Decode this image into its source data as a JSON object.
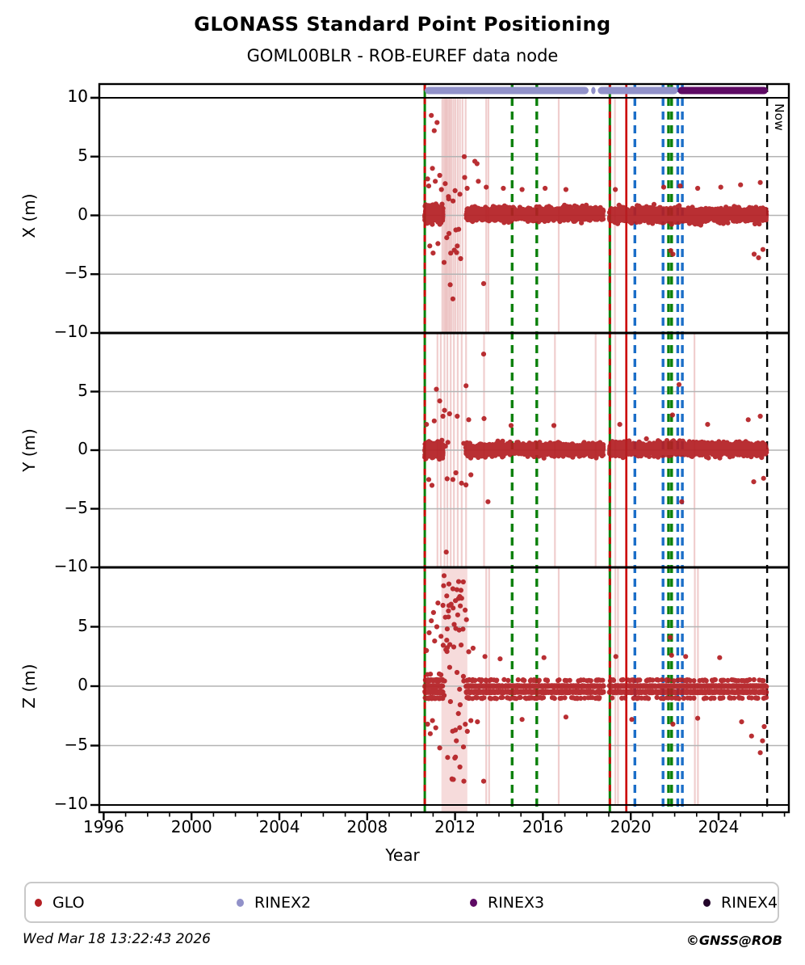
{
  "header": {
    "title": "GLONASS Standard Point Positioning",
    "subtitle": "GOML00BLR - ROB-EUREF data node"
  },
  "chart_data": {
    "type": "scatter",
    "xlabel": "Year",
    "x_range": [
      1995.8,
      2027.2
    ],
    "x_major_ticks": [
      1996,
      2000,
      2004,
      2008,
      2012,
      2016,
      2020,
      2024
    ],
    "x_minor_step": 1,
    "y_range_per_panel": [
      -10,
      10
    ],
    "gridline_values": [
      5,
      0,
      -5
    ],
    "now": {
      "year": 2026.21,
      "label": "Now"
    },
    "colors": {
      "glo": "#b41f24",
      "red": "#cc0000",
      "green": "#0a800a",
      "blue": "#1b6ec8",
      "black": "#000000",
      "grid": "#b3b3b3",
      "pale": "rgba(205,92,92,0.30)",
      "shade": "rgba(226,142,142,0.32)"
    },
    "bands": [
      {
        "name": "RINEX2",
        "color": "#9191c9",
        "segments": [
          [
            2010.62,
            2018.08
          ],
          [
            2018.2,
            2018.4
          ],
          [
            2018.5,
            2022.14
          ]
        ]
      },
      {
        "name": "RINEX3",
        "color": "#5e0a64",
        "segments": [
          [
            2022.14,
            2026.24
          ]
        ]
      }
    ],
    "events": [
      {
        "year": 2010.62,
        "color": "green",
        "style": "solid",
        "overlay_red_dashed": true
      },
      {
        "year": 2014.6,
        "color": "green",
        "style": "dashed"
      },
      {
        "year": 2015.72,
        "color": "green",
        "style": "dashed"
      },
      {
        "year": 2019.05,
        "color": "green",
        "style": "solid",
        "overlay_red_dashed": true
      },
      {
        "year": 2019.8,
        "color": "red",
        "style": "solid"
      },
      {
        "year": 2020.19,
        "color": "blue",
        "style": "dashed"
      },
      {
        "year": 2021.47,
        "color": "blue",
        "style": "dashed"
      },
      {
        "year": 2021.72,
        "color": "green",
        "style": "dashed"
      },
      {
        "year": 2021.86,
        "color": "green",
        "style": "dashed"
      },
      {
        "year": 2022.14,
        "color": "blue",
        "style": "dashed"
      },
      {
        "year": 2022.35,
        "color": "blue",
        "style": "dashed"
      }
    ],
    "panels": [
      {
        "name": "X",
        "ylabel": "X (m)",
        "tick_values": [
          10,
          5,
          0,
          -5,
          -10
        ],
        "clusters": [
          {
            "x0": 2010.62,
            "x1": 2011.45,
            "n": 420,
            "spread": 1.15,
            "center": 0.1
          },
          {
            "x0": 2012.5,
            "x1": 2018.76,
            "n": 1250,
            "spread": 0.95,
            "center": 0.12
          },
          {
            "x0": 2019.03,
            "x1": 2026.18,
            "n": 1500,
            "spread": 1.0,
            "center": 0.05
          }
        ],
        "sparse": {
          "x0": 2011.45,
          "x1": 2012.5,
          "n": 10,
          "ymin": -4.5,
          "ymax": 4.8
        },
        "outliers": [
          [
            2010.75,
            3.1
          ],
          [
            2010.8,
            2.5
          ],
          [
            2010.85,
            -2.6
          ],
          [
            2010.92,
            8.5
          ],
          [
            2010.97,
            4.0
          ],
          [
            2011.0,
            -3.2
          ],
          [
            2011.05,
            7.2
          ],
          [
            2011.1,
            2.9
          ],
          [
            2011.18,
            7.9
          ],
          [
            2011.22,
            -2.4
          ],
          [
            2011.3,
            3.4
          ],
          [
            2011.38,
            2.2
          ],
          [
            2011.5,
            -4.0
          ],
          [
            2011.55,
            2.7
          ],
          [
            2011.62,
            -1.9
          ],
          [
            2011.7,
            1.6
          ],
          [
            2011.78,
            -5.9
          ],
          [
            2011.9,
            -7.1
          ],
          [
            2012.0,
            2.1
          ],
          [
            2012.1,
            -2.6
          ],
          [
            2012.22,
            1.8
          ],
          [
            2012.42,
            5.0
          ],
          [
            2012.55,
            2.3
          ],
          [
            2012.9,
            4.6
          ],
          [
            2013.0,
            4.4
          ],
          [
            2013.06,
            2.9
          ],
          [
            2013.3,
            -5.8
          ],
          [
            2013.42,
            2.4
          ],
          [
            2014.2,
            2.3
          ],
          [
            2015.05,
            2.2
          ],
          [
            2016.1,
            2.3
          ],
          [
            2017.05,
            2.2
          ],
          [
            2019.3,
            2.2
          ],
          [
            2021.5,
            2.4
          ],
          [
            2021.82,
            -3.0
          ],
          [
            2021.92,
            -3.3
          ],
          [
            2022.25,
            2.5
          ],
          [
            2023.05,
            2.3
          ],
          [
            2024.1,
            2.4
          ],
          [
            2025.0,
            2.6
          ],
          [
            2025.62,
            -3.3
          ],
          [
            2025.82,
            -3.6
          ],
          [
            2025.9,
            2.8
          ],
          [
            2026.02,
            -2.9
          ]
        ],
        "pale_lines": [
          2011.42,
          2011.5,
          2011.57,
          2011.63,
          2011.7,
          2011.77,
          2011.84,
          2011.93,
          2012.02,
          2012.12,
          2012.22,
          2012.34,
          2012.48,
          2013.42,
          2013.52,
          2016.72,
          2019.28
        ],
        "shaded": []
      },
      {
        "name": "Y",
        "ylabel": "Y (m)",
        "tick_values": [
          5,
          0,
          -5,
          -10
        ],
        "clusters": [
          {
            "x0": 2010.62,
            "x1": 2011.45,
            "n": 420,
            "spread": 1.0,
            "center": 0.0
          },
          {
            "x0": 2012.5,
            "x1": 2018.76,
            "n": 1250,
            "spread": 0.9,
            "center": 0.05
          },
          {
            "x0": 2019.03,
            "x1": 2026.18,
            "n": 1500,
            "spread": 0.95,
            "center": 0.1
          }
        ],
        "sparse": {
          "x0": 2011.45,
          "x1": 2012.5,
          "n": 8,
          "ymin": -3.5,
          "ymax": 3.5
        },
        "outliers": [
          [
            2010.7,
            2.2
          ],
          [
            2010.8,
            -2.5
          ],
          [
            2010.95,
            -3.0
          ],
          [
            2011.05,
            2.5
          ],
          [
            2011.15,
            5.2
          ],
          [
            2011.3,
            4.2
          ],
          [
            2011.45,
            2.9
          ],
          [
            2011.52,
            3.4
          ],
          [
            2011.6,
            -8.7
          ],
          [
            2011.75,
            3.1
          ],
          [
            2011.9,
            -2.5
          ],
          [
            2012.1,
            2.9
          ],
          [
            2012.5,
            5.5
          ],
          [
            2012.62,
            2.6
          ],
          [
            2012.72,
            -2.1
          ],
          [
            2013.3,
            8.2
          ],
          [
            2013.32,
            2.7
          ],
          [
            2013.5,
            -4.4
          ],
          [
            2014.55,
            2.1
          ],
          [
            2016.5,
            2.1
          ],
          [
            2019.5,
            2.2
          ],
          [
            2021.9,
            3.0
          ],
          [
            2022.2,
            5.6
          ],
          [
            2022.32,
            -4.4
          ],
          [
            2023.5,
            2.2
          ],
          [
            2025.35,
            2.6
          ],
          [
            2025.6,
            -2.7
          ],
          [
            2025.9,
            2.9
          ],
          [
            2026.05,
            -2.4
          ]
        ],
        "pale_lines": [
          2011.2,
          2011.35,
          2011.52,
          2011.65,
          2011.8,
          2011.95,
          2012.12,
          2012.3,
          2012.5,
          2013.32,
          2016.55,
          2018.4,
          2019.3,
          2022.9
        ],
        "shaded": []
      },
      {
        "name": "Z",
        "ylabel": "Z (m)",
        "tick_values": [
          5,
          0,
          -5,
          -10
        ],
        "clusters": [
          {
            "x0": 2010.62,
            "x1": 2011.45,
            "n": 420,
            "spread": 1.5,
            "center": -0.2,
            "quantize": true,
            "qmin": -3.0,
            "qmax": 2.5
          },
          {
            "x0": 2012.5,
            "x1": 2018.76,
            "n": 1250,
            "spread": 1.05,
            "center": -0.25,
            "quantize": true,
            "qmin": -2.0,
            "qmax": 1.5
          },
          {
            "x0": 2019.03,
            "x1": 2026.18,
            "n": 1500,
            "spread": 1.05,
            "center": -0.25,
            "quantize": true,
            "qmin": -2.0,
            "qmax": 1.5
          }
        ],
        "sparse": {
          "x0": 2011.45,
          "x1": 2012.5,
          "n": 40,
          "ymin": -8.0,
          "ymax": 9.0
        },
        "outliers": [
          [
            2010.7,
            3.0
          ],
          [
            2010.75,
            -3.2
          ],
          [
            2010.82,
            4.5
          ],
          [
            2010.87,
            -4.0
          ],
          [
            2010.92,
            5.5
          ],
          [
            2010.97,
            -2.9
          ],
          [
            2011.02,
            6.2
          ],
          [
            2011.07,
            3.8
          ],
          [
            2011.12,
            -3.5
          ],
          [
            2011.17,
            5.0
          ],
          [
            2011.22,
            7.0
          ],
          [
            2011.3,
            -5.2
          ],
          [
            2011.36,
            4.2
          ],
          [
            2011.45,
            6.8
          ],
          [
            2011.5,
            9.3
          ],
          [
            2011.56,
            5.8
          ],
          [
            2011.62,
            7.6
          ],
          [
            2011.66,
            -6.0
          ],
          [
            2011.72,
            8.6
          ],
          [
            2011.76,
            3.5
          ],
          [
            2011.82,
            6.9
          ],
          [
            2011.86,
            -7.8
          ],
          [
            2011.9,
            8.2
          ],
          [
            2011.96,
            5.2
          ],
          [
            2012.02,
            7.2
          ],
          [
            2012.06,
            -4.6
          ],
          [
            2012.12,
            6.0
          ],
          [
            2012.16,
            8.8
          ],
          [
            2012.22,
            -6.8
          ],
          [
            2012.3,
            7.4
          ],
          [
            2012.36,
            4.8
          ],
          [
            2012.4,
            -8.0
          ],
          [
            2012.46,
            6.4
          ],
          [
            2012.52,
            5.6
          ],
          [
            2012.56,
            -3.8
          ],
          [
            2012.62,
            2.9
          ],
          [
            2012.72,
            -2.9
          ],
          [
            2012.82,
            3.2
          ],
          [
            2013.02,
            -3.0
          ],
          [
            2013.3,
            -8.0
          ],
          [
            2013.36,
            2.5
          ],
          [
            2014.05,
            2.3
          ],
          [
            2015.05,
            -2.8
          ],
          [
            2016.05,
            2.4
          ],
          [
            2017.05,
            -2.6
          ],
          [
            2019.32,
            2.5
          ],
          [
            2020.05,
            -2.8
          ],
          [
            2021.8,
            4.1
          ],
          [
            2021.86,
            2.6
          ],
          [
            2021.92,
            -3.2
          ],
          [
            2022.5,
            2.5
          ],
          [
            2023.05,
            -2.7
          ],
          [
            2024.05,
            2.4
          ],
          [
            2025.05,
            -3.0
          ],
          [
            2025.5,
            -4.2
          ],
          [
            2025.9,
            -5.6
          ],
          [
            2026.0,
            -4.6
          ],
          [
            2026.08,
            -3.4
          ]
        ],
        "pale_lines": [
          2013.42,
          2013.55,
          2016.72,
          2019.3,
          2019.42,
          2022.92,
          2023.06
        ],
        "shaded": [
          [
            2011.38,
            2012.56
          ]
        ]
      }
    ]
  },
  "legend": {
    "items": [
      {
        "label": "GLO",
        "color": "#b41f24"
      },
      {
        "label": "RINEX2",
        "color": "#9191c9"
      },
      {
        "label": "RINEX3",
        "color": "#5e0a64"
      },
      {
        "label": "RINEX4",
        "color": "#23052a"
      }
    ]
  },
  "footer": {
    "left": "Wed Mar 18 13:22:43 2026",
    "right": "©GNSS@ROB"
  }
}
